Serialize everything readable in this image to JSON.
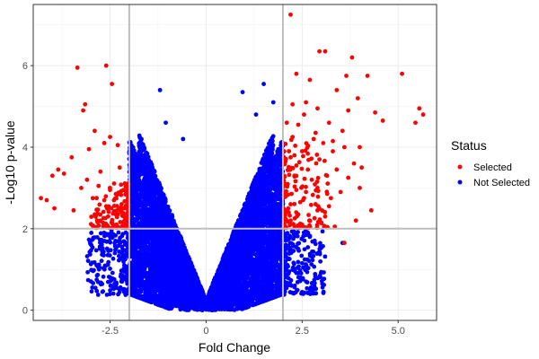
{
  "chart_data": {
    "type": "scatter",
    "title": "",
    "xlabel": "Fold Change",
    "ylabel": "-Log10 p-value",
    "xlim": [
      -4.5,
      6.0
    ],
    "ylim": [
      -0.25,
      7.5
    ],
    "x_ticks": [
      -2.5,
      0,
      2.5,
      5.0
    ],
    "x_tick_labels": [
      "-2.5",
      "0",
      "2.5",
      "5.0"
    ],
    "y_ticks": [
      0,
      2,
      4,
      6
    ],
    "y_tick_labels": [
      "0",
      "2",
      "4",
      "6"
    ],
    "grid": true,
    "threshold_lines": {
      "x": [
        -2,
        2
      ],
      "y": [
        2
      ]
    },
    "legend": {
      "title": "Status",
      "position": "right",
      "entries": [
        {
          "label": "Selected",
          "color": "#ff0000"
        },
        {
          "label": "Not Selected",
          "color": "#0000ff"
        }
      ]
    },
    "series": [
      {
        "name": "Selected",
        "color": "#ff0000",
        "points": [
          [
            2.2,
            7.25
          ],
          [
            2.35,
            5.8
          ],
          [
            2.7,
            5.65
          ],
          [
            2.95,
            6.35
          ],
          [
            3.1,
            6.35
          ],
          [
            3.4,
            5.4
          ],
          [
            3.65,
            5.75
          ],
          [
            3.8,
            6.2
          ],
          [
            3.95,
            5.2
          ],
          [
            4.2,
            5.75
          ],
          [
            5.1,
            5.8
          ],
          [
            5.55,
            4.95
          ],
          [
            5.65,
            4.8
          ],
          [
            5.45,
            4.6
          ],
          [
            4.6,
            4.65
          ],
          [
            4.4,
            4.85
          ],
          [
            3.7,
            4.9
          ],
          [
            3.55,
            4.4
          ],
          [
            3.2,
            4.6
          ],
          [
            2.9,
            4.95
          ],
          [
            2.6,
            5.1
          ],
          [
            2.4,
            4.55
          ],
          [
            2.25,
            4.25
          ],
          [
            2.8,
            4.2
          ],
          [
            3.05,
            4.1
          ],
          [
            3.3,
            4.15
          ],
          [
            3.6,
            4.0
          ],
          [
            4.0,
            4.0
          ],
          [
            3.85,
            3.6
          ],
          [
            4.05,
            3.5
          ],
          [
            3.4,
            3.45
          ],
          [
            2.95,
            3.7
          ],
          [
            2.5,
            3.9
          ],
          [
            2.2,
            3.75
          ],
          [
            2.3,
            3.3
          ],
          [
            2.65,
            3.45
          ],
          [
            3.15,
            3.3
          ],
          [
            3.7,
            3.25
          ],
          [
            4.0,
            3.0
          ],
          [
            4.3,
            2.45
          ],
          [
            3.9,
            2.2
          ],
          [
            3.6,
            1.65
          ],
          [
            3.35,
            2.05
          ],
          [
            3.1,
            2.3
          ],
          [
            2.85,
            2.6
          ],
          [
            2.55,
            2.75
          ],
          [
            2.35,
            2.95
          ],
          [
            2.2,
            2.6
          ],
          [
            2.4,
            2.35
          ],
          [
            2.7,
            2.2
          ],
          [
            3.0,
            2.15
          ],
          [
            2.2,
            2.2
          ],
          [
            2.3,
            2.05
          ],
          [
            2.15,
            2.4
          ],
          [
            2.6,
            2.9
          ],
          [
            2.9,
            3.0
          ],
          [
            3.25,
            2.75
          ],
          [
            2.45,
            2.65
          ],
          [
            2.75,
            3.2
          ],
          [
            3.5,
            2.9
          ],
          [
            2.25,
            5.05
          ],
          [
            2.55,
            4.8
          ],
          [
            2.1,
            4.6
          ],
          [
            2.85,
            4.35
          ],
          [
            3.3,
            3.9
          ],
          [
            2.35,
            3.55
          ],
          [
            2.9,
            2.45
          ],
          [
            3.2,
            2.55
          ],
          [
            2.05,
            3.1
          ],
          [
            2.5,
            2.1
          ],
          [
            -2.6,
            6.0
          ],
          [
            -3.35,
            5.95
          ],
          [
            -2.45,
            5.55
          ],
          [
            -3.15,
            5.05
          ],
          [
            -3.2,
            4.9
          ],
          [
            -2.9,
            4.4
          ],
          [
            -2.5,
            4.25
          ],
          [
            -2.3,
            4.05
          ],
          [
            -2.65,
            4.1
          ],
          [
            -3.05,
            3.95
          ],
          [
            -3.5,
            3.75
          ],
          [
            -3.7,
            3.35
          ],
          [
            -4.0,
            3.3
          ],
          [
            -3.85,
            3.45
          ],
          [
            -4.3,
            2.75
          ],
          [
            -4.15,
            2.7
          ],
          [
            -3.25,
            3.0
          ],
          [
            -3.1,
            3.2
          ],
          [
            -2.8,
            3.05
          ],
          [
            -2.5,
            2.95
          ],
          [
            -2.75,
            3.4
          ],
          [
            -2.25,
            3.5
          ],
          [
            -2.4,
            2.7
          ],
          [
            -2.6,
            2.55
          ],
          [
            -2.2,
            2.6
          ],
          [
            -2.3,
            2.35
          ],
          [
            -2.55,
            2.3
          ],
          [
            -2.75,
            2.2
          ],
          [
            -2.9,
            2.35
          ],
          [
            -2.45,
            2.15
          ],
          [
            -2.15,
            2.1
          ],
          [
            -2.2,
            2.05
          ],
          [
            -3.45,
            2.45
          ],
          [
            -3.95,
            2.5
          ],
          [
            -2.95,
            2.75
          ],
          [
            -2.35,
            2.85
          ],
          [
            -2.65,
            2.7
          ],
          [
            -2.05,
            2.3
          ]
        ]
      },
      {
        "name": "Not Selected",
        "color": "#0000ff",
        "points": [
          [
            -1.2,
            5.4
          ],
          [
            1.5,
            5.55
          ],
          [
            0.95,
            5.35
          ],
          [
            -1.05,
            4.6
          ],
          [
            -0.6,
            4.2
          ],
          [
            1.65,
            3.65
          ],
          [
            -1.75,
            3.2
          ],
          [
            3.55,
            1.65
          ],
          [
            -2.5,
            1.8
          ],
          [
            -2.85,
            1.1
          ],
          [
            2.7,
            1.8
          ],
          [
            1.85,
            0.5
          ],
          [
            -1.95,
            0.6
          ],
          [
            1.3,
            4.8
          ],
          [
            1.75,
            5.1
          ]
        ]
      }
    ]
  }
}
